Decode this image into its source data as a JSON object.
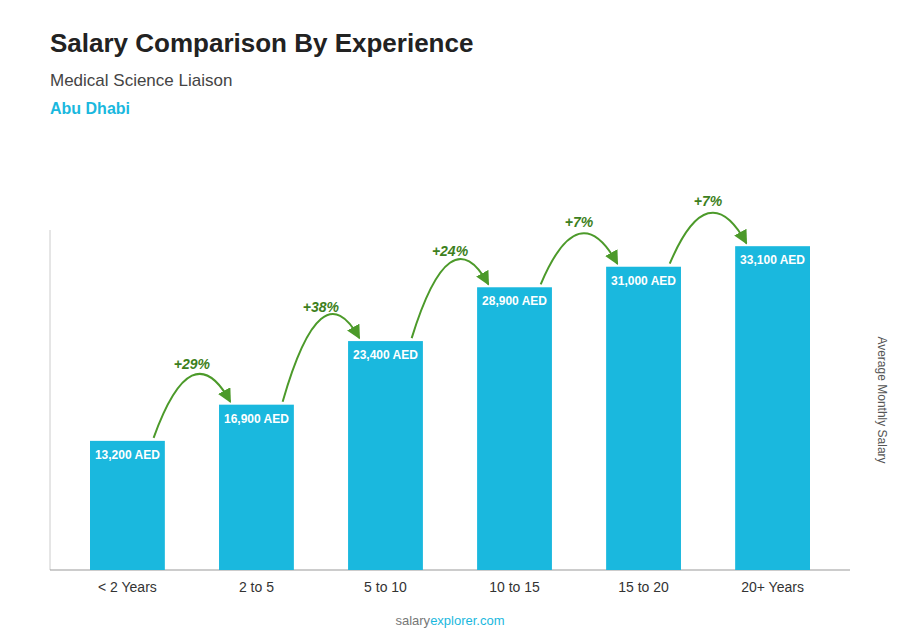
{
  "chart_data": {
    "type": "bar",
    "title": "Salary Comparison By Experience",
    "subtitle": "Medical Science Liaison",
    "city": "Abu Dhabi",
    "y_label": "Average Monthly Salary",
    "watermark": [
      "salary",
      "explorer.com"
    ],
    "categories": [
      "< 2 Years",
      "2 to 5",
      "5 to 10",
      "10 to 15",
      "15 to 20",
      "20+ Years"
    ],
    "values": [
      13200,
      16900,
      23400,
      28900,
      31000,
      33100
    ],
    "value_labels": [
      "13,200 AED",
      "16,900 AED",
      "23,400 AED",
      "28,900 AED",
      "31,000 AED",
      "33,100 AED"
    ],
    "data_labels": true,
    "annotations": [
      "+29%",
      "+38%",
      "+24%",
      "+7%",
      "+7%"
    ],
    "color": "#1ab8de",
    "ylim": [
      0,
      34755
    ],
    "yticks": [],
    "tick_labels": "x",
    "grid": false
  }
}
